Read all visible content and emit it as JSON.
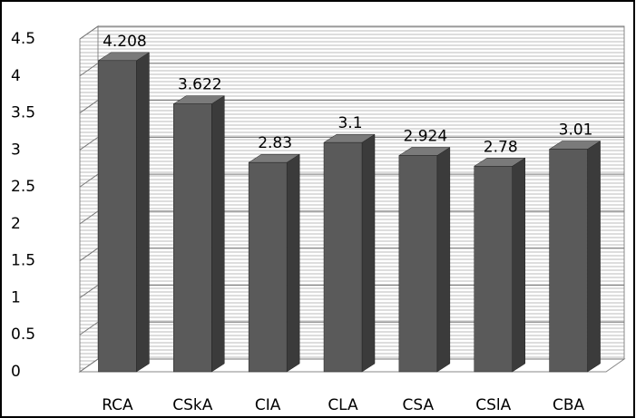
{
  "chart_data": {
    "type": "bar3d",
    "categories": [
      "RCA",
      "CSkA",
      "CIA",
      "CLA",
      "CSA",
      "CSlA",
      "CBA"
    ],
    "values": [
      4.208,
      3.622,
      2.83,
      3.1,
      2.924,
      2.78,
      3.01
    ],
    "color": "#5a5a5a",
    "ylim": [
      0,
      4.5
    ],
    "yticks": [
      0,
      0.5,
      1,
      1.5,
      2,
      2.5,
      3,
      3.5,
      4,
      4.5
    ],
    "grid": true
  }
}
